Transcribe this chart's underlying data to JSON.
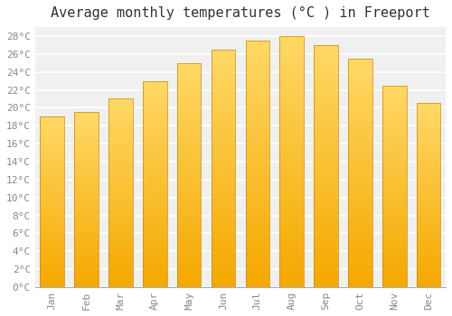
{
  "title": "Average monthly temperatures (°C ) in Freeport",
  "months": [
    "Jan",
    "Feb",
    "Mar",
    "Apr",
    "May",
    "Jun",
    "Jul",
    "Aug",
    "Sep",
    "Oct",
    "Nov",
    "Dec"
  ],
  "values": [
    19.0,
    19.5,
    21.0,
    23.0,
    25.0,
    26.5,
    27.5,
    28.0,
    27.0,
    25.5,
    22.5,
    20.5
  ],
  "bar_color_bottom": "#F5A800",
  "bar_color_top": "#FFD966",
  "ylim": [
    0,
    29
  ],
  "ylim_display": 28,
  "ytick_step": 2,
  "background_color": "#ffffff",
  "plot_bg_color": "#f0f0f0",
  "grid_color": "#ffffff",
  "title_fontsize": 11,
  "tick_fontsize": 8,
  "tick_color": "#888888",
  "font_family": "monospace",
  "bar_width": 0.7
}
